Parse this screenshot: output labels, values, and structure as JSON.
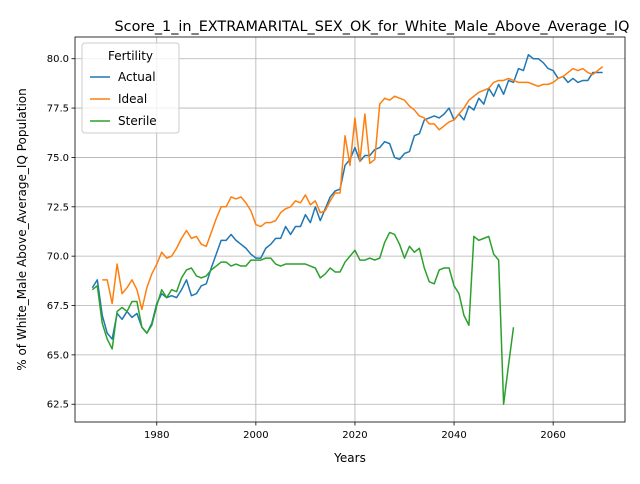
{
  "chart_data": {
    "type": "line",
    "title": "Score_1_in_EXTRAMARITAL_SEX_OK_for_White_Male_Above_Average_IQ",
    "xlabel": "Years",
    "ylabel": "% of White_Male Above_Average_IQ Population",
    "xlim": [
      1963.5,
      2074.5
    ],
    "ylim": [
      61.6,
      81.1
    ],
    "x_ticks": [
      1980,
      2000,
      2020,
      2040,
      2060
    ],
    "y_ticks": [
      62.5,
      65.0,
      67.5,
      70.0,
      72.5,
      75.0,
      77.5,
      80.0
    ],
    "x_tick_labels": [
      "1980",
      "2000",
      "2020",
      "2040",
      "2060"
    ],
    "y_tick_labels": [
      "62.5",
      "65.0",
      "67.5",
      "70.0",
      "72.5",
      "75.0",
      "77.5",
      "80.0"
    ],
    "grid": true,
    "legend": {
      "title": "Fertility",
      "placement": "top-left"
    },
    "series": [
      {
        "name": "Actual",
        "color": "#1f77b4",
        "x": [
          1967,
          1968,
          1969,
          1970,
          1971,
          1972,
          1973,
          1974,
          1975,
          1976,
          1977,
          1978,
          1979,
          1980,
          1981,
          1982,
          1983,
          1984,
          1985,
          1986,
          1987,
          1988,
          1989,
          1990,
          1991,
          1992,
          1993,
          1994,
          1995,
          1996,
          1997,
          1998,
          1999,
          2000,
          2001,
          2002,
          2003,
          2004,
          2005,
          2006,
          2007,
          2008,
          2009,
          2010,
          2011,
          2012,
          2013,
          2014,
          2015,
          2016,
          2017,
          2018,
          2019,
          2020,
          2021,
          2022,
          2023,
          2024,
          2025,
          2026,
          2027,
          2028,
          2029,
          2030,
          2031,
          2032,
          2033,
          2034,
          2035,
          2036,
          2037,
          2038,
          2039,
          2040,
          2041,
          2042,
          2043,
          2044,
          2045,
          2046,
          2047,
          2048,
          2049,
          2050,
          2051,
          2052,
          2053,
          2054,
          2055,
          2056,
          2057,
          2058,
          2059,
          2060,
          2061,
          2062,
          2063,
          2064,
          2065,
          2066,
          2067,
          2068,
          2069,
          2070
        ],
        "values": [
          68.4,
          68.8,
          67.0,
          66.1,
          65.8,
          67.1,
          66.8,
          67.2,
          66.9,
          67.1,
          66.4,
          66.1,
          66.6,
          67.6,
          68.1,
          67.9,
          68.0,
          67.9,
          68.3,
          68.8,
          68.0,
          68.1,
          68.5,
          68.6,
          69.4,
          70.1,
          70.8,
          70.8,
          71.1,
          70.8,
          70.6,
          70.4,
          70.1,
          69.9,
          69.9,
          70.4,
          70.6,
          70.9,
          70.9,
          71.5,
          71.1,
          71.5,
          71.5,
          72.1,
          71.7,
          72.5,
          71.8,
          72.4,
          73.0,
          73.3,
          73.4,
          74.6,
          74.9,
          75.5,
          74.8,
          75.1,
          75.1,
          75.4,
          75.5,
          75.8,
          75.7,
          75.0,
          74.9,
          75.2,
          75.3,
          76.1,
          76.2,
          76.9,
          77.0,
          77.1,
          77.0,
          77.2,
          77.5,
          76.9,
          77.2,
          76.9,
          77.6,
          77.4,
          78.0,
          77.7,
          78.5,
          78.1,
          78.7,
          78.2,
          78.9,
          78.8,
          79.5,
          79.4,
          80.2,
          80.0,
          80.0,
          79.8,
          79.5,
          79.4,
          79.0,
          79.1,
          78.8,
          79.0,
          78.8,
          78.9,
          78.9,
          79.3,
          79.3,
          79.3
        ]
      },
      {
        "name": "Ideal",
        "color": "#ff7f0e",
        "x": [
          1969,
          1970,
          1971,
          1972,
          1973,
          1974,
          1975,
          1976,
          1977,
          1978,
          1979,
          1980,
          1981,
          1982,
          1983,
          1984,
          1985,
          1986,
          1987,
          1988,
          1989,
          1990,
          1991,
          1992,
          1993,
          1994,
          1995,
          1996,
          1997,
          1998,
          1999,
          2000,
          2001,
          2002,
          2003,
          2004,
          2005,
          2006,
          2007,
          2008,
          2009,
          2010,
          2011,
          2012,
          2013,
          2014,
          2015,
          2016,
          2017,
          2018,
          2019,
          2020,
          2021,
          2022,
          2023,
          2024,
          2025,
          2026,
          2027,
          2028,
          2029,
          2030,
          2031,
          2032,
          2033,
          2034,
          2035,
          2036,
          2037,
          2038,
          2039,
          2040,
          2041,
          2042,
          2043,
          2044,
          2045,
          2046,
          2047,
          2048,
          2049,
          2050,
          2051,
          2052,
          2053,
          2054,
          2055,
          2056,
          2057,
          2058,
          2059,
          2060,
          2061,
          2062,
          2063,
          2064,
          2065,
          2066,
          2067,
          2068,
          2069,
          2070
        ],
        "values": [
          68.8,
          68.8,
          67.6,
          69.6,
          68.1,
          68.4,
          68.8,
          68.3,
          67.3,
          68.4,
          69.1,
          69.6,
          70.2,
          69.9,
          70.0,
          70.4,
          70.9,
          71.3,
          70.9,
          71.0,
          70.6,
          70.5,
          71.2,
          71.9,
          72.5,
          72.5,
          73.0,
          72.9,
          73.0,
          72.7,
          72.3,
          71.6,
          71.5,
          71.7,
          71.7,
          71.8,
          72.2,
          72.4,
          72.5,
          72.8,
          72.7,
          73.1,
          72.6,
          72.8,
          72.2,
          72.3,
          72.8,
          73.2,
          73.2,
          76.1,
          74.6,
          77.0,
          74.8,
          77.2,
          74.7,
          74.9,
          77.7,
          78.0,
          77.9,
          78.1,
          78.0,
          77.9,
          77.6,
          77.4,
          77.1,
          77.0,
          76.7,
          76.7,
          76.4,
          76.6,
          76.8,
          76.9,
          77.2,
          77.5,
          77.9,
          78.1,
          78.3,
          78.4,
          78.5,
          78.8,
          78.9,
          78.9,
          79.0,
          78.9,
          78.8,
          78.8,
          78.8,
          78.7,
          78.6,
          78.7,
          78.7,
          78.8,
          79.0,
          79.1,
          79.3,
          79.5,
          79.4,
          79.5,
          79.3,
          79.2,
          79.4,
          79.6
        ]
      },
      {
        "name": "Sterile",
        "color": "#2ca02c",
        "x": [
          1967,
          1968,
          1969,
          1970,
          1971,
          1972,
          1973,
          1974,
          1975,
          1976,
          1977,
          1978,
          1979,
          1980,
          1981,
          1982,
          1983,
          1984,
          1985,
          1986,
          1987,
          1988,
          1989,
          1990,
          1991,
          1992,
          1993,
          1994,
          1995,
          1996,
          1997,
          1998,
          1999,
          2000,
          2001,
          2002,
          2003,
          2004,
          2005,
          2006,
          2007,
          2008,
          2009,
          2010,
          2011,
          2012,
          2013,
          2014,
          2015,
          2016,
          2017,
          2018,
          2019,
          2020,
          2021,
          2022,
          2023,
          2024,
          2025,
          2026,
          2027,
          2028,
          2029,
          2030,
          2031,
          2032,
          2033,
          2034,
          2035,
          2036,
          2037,
          2038,
          2039,
          2040,
          2041,
          2042,
          2043,
          2044,
          2045,
          2046,
          2047,
          2048,
          2049,
          2050,
          2051,
          2052
        ],
        "values": [
          68.3,
          68.5,
          66.6,
          65.8,
          65.3,
          67.2,
          67.4,
          67.2,
          67.7,
          67.7,
          66.4,
          66.1,
          66.5,
          67.5,
          68.3,
          67.9,
          68.3,
          68.2,
          68.9,
          69.3,
          69.4,
          69.0,
          68.9,
          69.0,
          69.3,
          69.5,
          69.7,
          69.7,
          69.5,
          69.6,
          69.5,
          69.5,
          69.8,
          69.8,
          69.8,
          69.9,
          69.9,
          69.6,
          69.5,
          69.6,
          69.6,
          69.6,
          69.6,
          69.6,
          69.5,
          69.4,
          68.9,
          69.1,
          69.4,
          69.2,
          69.2,
          69.7,
          70.0,
          70.3,
          69.8,
          69.8,
          69.9,
          69.8,
          69.9,
          70.7,
          71.2,
          71.1,
          70.6,
          69.9,
          70.5,
          70.2,
          70.4,
          69.4,
          68.7,
          68.6,
          69.3,
          69.4,
          69.4,
          68.5,
          68.1,
          67.0,
          66.5,
          71.0,
          70.8,
          70.9,
          71.0,
          70.1,
          69.8,
          62.5,
          64.5,
          66.4
        ]
      }
    ]
  }
}
